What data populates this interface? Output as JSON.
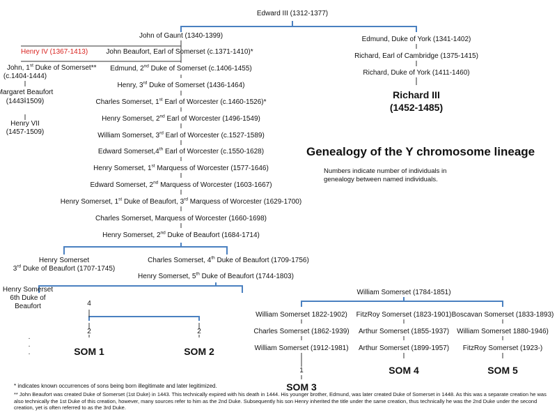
{
  "title": "Genealogy of the Y chromosome lineage",
  "subtitle": "Numbers indicate number of individuals in genealogy between named individuals.",
  "colors": {
    "connector": "#4a80c0",
    "highlight": "#d9231f"
  },
  "people": {
    "edward3": "Edward III (1312-1377)",
    "gaunt": "John of Gaunt (1340-1399)",
    "henry4": "Henry IV (1367-1413)",
    "jbeaufort": "John Beaufort, Earl of Somerset (c.1371-1410)*",
    "john1_a": "John, 1",
    "john1_sup": "st",
    "john1_b": " Duke of Somerset**",
    "john1_dates": "(c.1404-1444)",
    "edmund2_a": "Edmund, 2",
    "edmund2_sup": "nd",
    "edmund2_b": " Duke of Somerset (c.1406-1455)",
    "margaret": "Margaret Beaufort",
    "margaret_dates": "(1443-1509)",
    "henry3_a": "Henry, 3",
    "henry3_sup": "rd",
    "henry3_b": " Duke of Somerset (1436-1464)",
    "henry7": "Henry VII",
    "henry7_dates": "(1457-1509)",
    "charles1_a": "Charles Somerset, 1",
    "charles1_sup": "st",
    "charles1_b": " Earl of Worcester (c.1460-1526)*",
    "henry2w_a": "Henry Somerset, 2",
    "henry2w_sup": "nd",
    "henry2w_b": " Earl of Worcester (1496-1549)",
    "william3w_a": "William Somerset, 3",
    "william3w_sup": "rd",
    "william3w_b": " Earl of Worcester (c.1527-1589)",
    "edward4w_a": "Edward Somerset,4",
    "edward4w_sup": "th",
    "edward4w_b": " Earl of Worcester (c.1550-1628)",
    "henry1m_a": "Henry Somerset, 1",
    "henry1m_sup": "st",
    "henry1m_b": " Marquess of Worcester (1577-1646)",
    "edward2m_a": "Edward Somerset, 2",
    "edward2m_sup": "nd",
    "edward2m_b": " Marquess of Worcester (1603-1667)",
    "henry1b_a": "Henry Somerset, 1",
    "henry1b_sup1": "st",
    "henry1b_b": " Duke of Beaufort, 3",
    "henry1b_sup2": "rd",
    "henry1b_c": " Marquess of Worcester (1629-1700)",
    "charlesm": "Charles Somerset, Marquess of Worcester (1660-1698)",
    "henry2b_a": "Henry Somerset, 2",
    "henry2b_sup": "nd",
    "henry2b_b": " Duke of Beaufort (1684-1714)",
    "henry3b_name": "Henry Somerset",
    "henry3b_a": "3",
    "henry3b_sup": "rd",
    "henry3b_b": " Duke of Beaufort (1707-1745)",
    "charles4b_a": "Charles Somerset, 4",
    "charles4b_sup": "th",
    "charles4b_b": " Duke of Beaufort (1709-1756)",
    "henry5b_a": "Henry Somerset, 5",
    "henry5b_sup": "th",
    "henry5b_b": " Duke of Beaufort (1744-1803)",
    "henry6b_1": "Henry Somerset",
    "henry6b_2": "6th Duke of",
    "henry6b_3": "Beaufort",
    "william1784": "William Somerset (1784-1851)",
    "william1822": "William Somerset 1822-1902)",
    "fitzroy1823": "FitzRoy Somerset (1823-1901)",
    "boscavan": "Boscavan Somerset (1833-1893)",
    "charles1862": "Charles Somerset (1862-1939)",
    "arthur1855": "Arthur Somerset  (1855-1937)",
    "william1880": "William Somerset 1880-1946)",
    "william1912": "William Somerset (1912-1981)",
    "arthur1899": "Arthur Somerset (1899-1957)",
    "fitzroy1923": "FitzRoy Somerset (1923-)",
    "edmund_york": "Edmund, Duke of York (1341-1402)",
    "richard_cambridge": "Richard, Earl of Cambridge (1375-1415)",
    "richard_york": "Richard, Duke of York (1411-1460)",
    "richard3": "Richard III",
    "richard3_dates": "(1452-1485)"
  },
  "counts": {
    "c4": "4",
    "c2a": "2",
    "c2b": "2",
    "c1": "1"
  },
  "dots": ".\n.\n.",
  "endpoints": {
    "som1": "SOM 1",
    "som2": "SOM 2",
    "som3": "SOM 3",
    "som4": "SOM 4",
    "som5": "SOM 5"
  },
  "notes": {
    "note1": "* indicates known occurrences of sons being born illegitimate and later legitimized.",
    "note2": "** John Beaufort was created Duke of Somerset (1st Duke) in 1443. This technically expired with his death in 1444. His younger brother, Edmund, was later created Duke of Somerset in 1448. As this was a separate creation he was also technically the 1st Duke of this creation, however, many sources refer to him as the 2nd Duke. Subsequently his son Henry inherited the title under the same creation, thus technically he was the 2nd Duke under the second creation, yet is often referred to as the 3rd Duke."
  }
}
